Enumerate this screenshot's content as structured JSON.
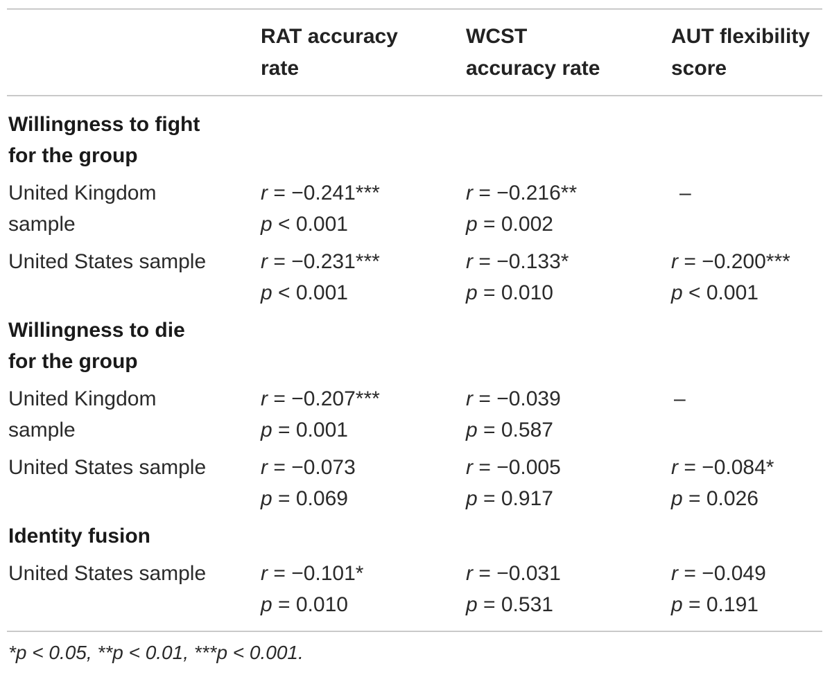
{
  "headers": {
    "col1": [
      "RAT accuracy",
      "rate"
    ],
    "col2": [
      "WCST",
      "accuracy rate"
    ],
    "col3": [
      "AUT flexibility",
      "score"
    ]
  },
  "sections": [
    {
      "title": [
        "Willingness to fight",
        "for the group"
      ],
      "rows": [
        {
          "label": [
            "United Kingdom",
            "sample"
          ],
          "col1": {
            "r": "r = −0.241***",
            "p": "p < 0.001"
          },
          "col2": {
            "r": "r = −0.216**",
            "p": "p = 0.002"
          },
          "col3": "–"
        },
        {
          "label": [
            "United States sample"
          ],
          "col1": {
            "r": "r = −0.231***",
            "p": "p < 0.001"
          },
          "col2": {
            "r": "r = −0.133*",
            "p": "p = 0.010"
          },
          "col3": {
            "r": "r = −0.200***",
            "p": "p < 0.001"
          }
        }
      ]
    },
    {
      "title": [
        "Willingness to die",
        "for the group"
      ],
      "rows": [
        {
          "label": [
            "United Kingdom",
            "sample"
          ],
          "col1": {
            "r": "r = −0.207***",
            "p": "p = 0.001"
          },
          "col2": {
            "r": "r = −0.039",
            "p": "p = 0.587"
          },
          "col3": "–"
        },
        {
          "label": [
            "United States sample"
          ],
          "col1": {
            "r": "r = −0.073",
            "p": "p = 0.069"
          },
          "col2": {
            "r": "r = −0.005",
            "p": "p = 0.917"
          },
          "col3": {
            "r": "r = −0.084*",
            "p": "p = 0.026"
          }
        }
      ]
    },
    {
      "title": [
        "Identity fusion"
      ],
      "rows": [
        {
          "label": [
            "United States sample"
          ],
          "col1": {
            "r": "r = −0.101*",
            "p": "p = 0.010"
          },
          "col2": {
            "r": "r = −0.031",
            "p": "p = 0.531"
          },
          "col3": {
            "r": "r = −0.049",
            "p": "p = 0.191"
          }
        }
      ]
    }
  ],
  "footnote": "*p < 0.05, **p < 0.01, ***p < 0.001."
}
